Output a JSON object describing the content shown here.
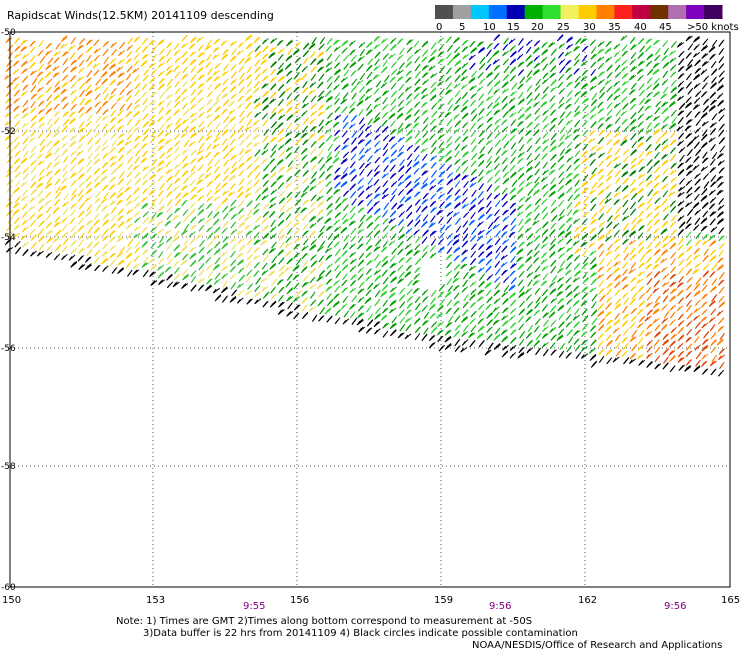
{
  "title": "Rapidscat Winds(12.5KM) 20141109 descending",
  "legend": {
    "labels": [
      "0",
      "5",
      "10",
      "15",
      "20",
      "25",
      "30",
      "35",
      "40",
      "45",
      ">50 knots"
    ],
    "colors": [
      "#505050",
      "#a0a0a0",
      "#00c8ff",
      "#0070ff",
      "#0000b0",
      "#00b000",
      "#30e030",
      "#f0f060",
      "#ffcc00",
      "#ff8000",
      "#ff2020",
      "#c00040",
      "#703000",
      "#b070b0",
      "#8000c0",
      "#400060"
    ]
  },
  "lat_labels": [
    "-50",
    "-52",
    "-54",
    "-56",
    "-58",
    "-60"
  ],
  "lon_labels": [
    "150",
    "153",
    "156",
    "159",
    "162",
    "165"
  ],
  "time_labels": [
    "9:55",
    "9:56",
    "9:56"
  ],
  "notes": {
    "line1": "Note: 1) Times are GMT 2)Times along bottom correspond to measurement at -50S",
    "line2": "3)Data buffer is 22 hrs from 20141109 4) Black circles indicate possible contamination",
    "line3": "NOAA/NESDIS/Office of Research and Applications"
  }
}
